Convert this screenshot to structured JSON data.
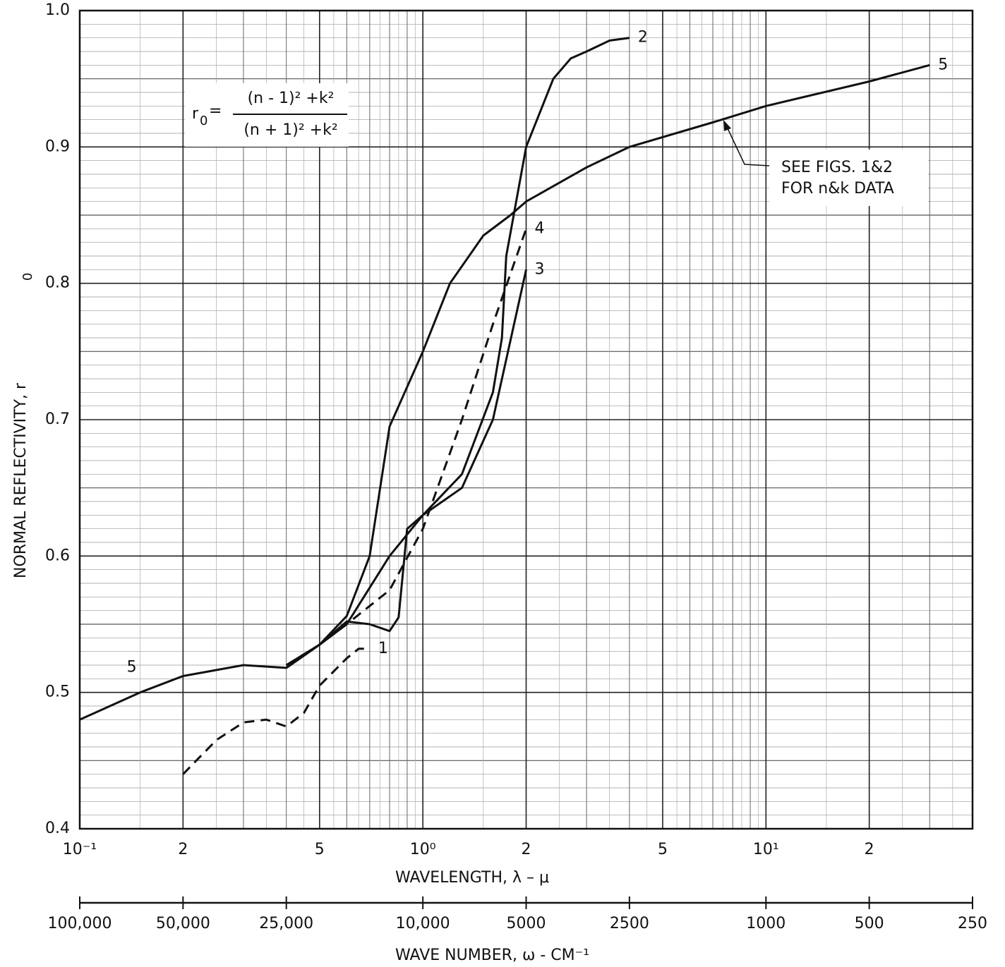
{
  "chart_data": {
    "type": "line",
    "xlabel": "WAVELENGTH,  λ –  μ",
    "ylabel": "NORMAL    REFLECTIVITY,   r",
    "ylabel_sub": "0",
    "xscale": "log",
    "xlim": [
      0.1,
      40
    ],
    "xticks": [
      {
        "value": 0.1,
        "label": "10⁻¹"
      },
      {
        "value": 0.2,
        "label": "2"
      },
      {
        "value": 0.5,
        "label": "5"
      },
      {
        "value": 1,
        "label": "10⁰"
      },
      2,
      5,
      {
        "value": 10,
        "label": "10¹"
      },
      {
        "value": 20,
        "label": "2"
      }
    ],
    "ylim": [
      0.4,
      1.0
    ],
    "yticks": [
      0.4,
      0.5,
      0.6,
      0.7,
      0.8,
      0.9,
      {
        "value": 1.0,
        "label": "1.0"
      }
    ],
    "grid": true,
    "x2label": "WAVE  NUMBER,  ω  -  CM⁻¹",
    "x2lim": [
      100000,
      250
    ],
    "x2ticks": [
      {
        "value": 100000,
        "label": "100,000"
      },
      {
        "value": 50000,
        "label": "50,000"
      },
      {
        "value": 25000,
        "label": "25,000"
      },
      {
        "value": 10000,
        "label": "10,000"
      },
      5000,
      2500,
      1000,
      500,
      250
    ],
    "formula": {
      "lhs": "r",
      "lhs_sub": "0",
      "equals": "=",
      "numerator": "(n - 1)² +k²",
      "denominator": "(n + 1)² +k²"
    },
    "note": [
      "SEE  FIGS. 1&2",
      "FOR  n&k  DATA"
    ],
    "series": [
      {
        "name": "1",
        "color": "#111",
        "dash": true,
        "x": [
          0.2,
          0.25,
          0.3,
          0.35,
          0.4,
          0.45,
          0.5,
          0.6,
          0.65,
          0.7
        ],
        "values": [
          0.44,
          0.465,
          0.478,
          0.48,
          0.475,
          0.485,
          0.505,
          0.525,
          0.532,
          0.532
        ]
      },
      {
        "name": "2",
        "color": "#111",
        "dash": false,
        "x": [
          0.4,
          0.5,
          0.6,
          0.7,
          0.8,
          0.85,
          0.9,
          1.0,
          1.3,
          1.6,
          1.7,
          1.75,
          2.0,
          2.4,
          2.7,
          3.0,
          3.5,
          4.0
        ],
        "values": [
          0.518,
          0.535,
          0.552,
          0.55,
          0.545,
          0.555,
          0.62,
          0.63,
          0.66,
          0.72,
          0.76,
          0.82,
          0.9,
          0.95,
          0.965,
          0.97,
          0.978,
          0.98
        ]
      },
      {
        "name": "3",
        "color": "#111",
        "dash": false,
        "x": [
          0.4,
          0.5,
          0.6,
          0.8,
          1.0,
          1.3,
          1.6,
          2.0
        ],
        "values": [
          0.52,
          0.535,
          0.55,
          0.6,
          0.63,
          0.65,
          0.7,
          0.81
        ]
      },
      {
        "name": "4",
        "color": "#111",
        "dash": true,
        "x": [
          0.4,
          0.5,
          0.6,
          0.8,
          1.0,
          1.3,
          1.6,
          2.0
        ],
        "values": [
          0.52,
          0.535,
          0.55,
          0.575,
          0.62,
          0.7,
          0.77,
          0.84
        ]
      },
      {
        "name": "5",
        "color": "#111",
        "dash": false,
        "x": [
          0.1,
          0.15,
          0.2,
          0.3,
          0.4,
          0.5,
          0.6,
          0.7,
          0.8,
          1.0,
          1.2,
          1.5,
          1.8,
          2.0,
          3.0,
          4.0,
          7.0,
          10.0,
          20.0,
          30.0
        ],
        "values": [
          0.48,
          0.5,
          0.512,
          0.52,
          0.518,
          0.535,
          0.556,
          0.6,
          0.695,
          0.75,
          0.8,
          0.835,
          0.85,
          0.86,
          0.885,
          0.9,
          0.918,
          0.93,
          0.948,
          0.96
        ]
      }
    ]
  }
}
